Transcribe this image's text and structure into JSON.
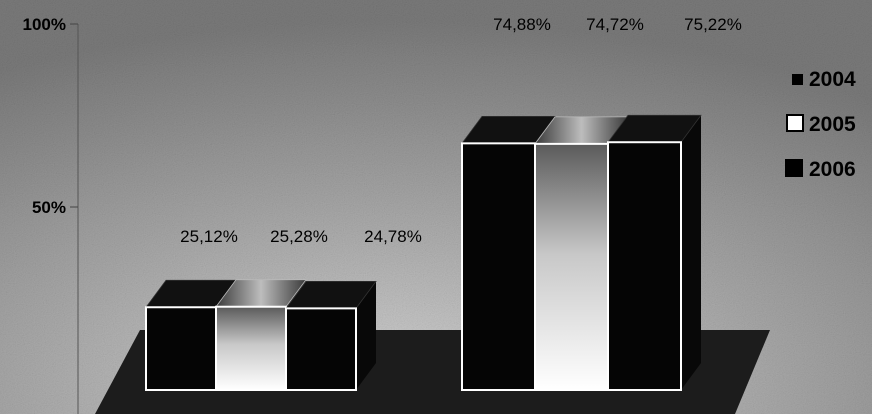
{
  "chart_data": {
    "type": "bar",
    "categories": [
      "",
      ""
    ],
    "series": [
      {
        "name": "2004",
        "values": [
          25.12,
          74.88
        ],
        "labels": [
          "25,12%",
          "74,88%"
        ],
        "color": "#000000",
        "legend_marker": "small-filled-square"
      },
      {
        "name": "2005",
        "values": [
          25.28,
          74.72
        ],
        "labels": [
          "25,28%",
          "74,72%"
        ],
        "color": "#ffffff",
        "legend_marker": "hollow-square"
      },
      {
        "name": "2006",
        "values": [
          24.78,
          75.22
        ],
        "labels": [
          "24,78%",
          "75,22%"
        ],
        "color": "#000000",
        "legend_marker": "filled-square"
      }
    ],
    "yticks": [
      {
        "value": 50,
        "label": "50%"
      },
      {
        "value": 100,
        "label": "100%"
      }
    ],
    "ylim": [
      0,
      100
    ],
    "title": "",
    "xlabel": "",
    "ylabel": "",
    "legend_position": "right",
    "grid": false,
    "style": "3d-bars",
    "colors": {
      "background": "#9a9a9a",
      "floor": "#1c1c1c",
      "bar_outline": "#ffffff",
      "text": "#000000"
    }
  }
}
